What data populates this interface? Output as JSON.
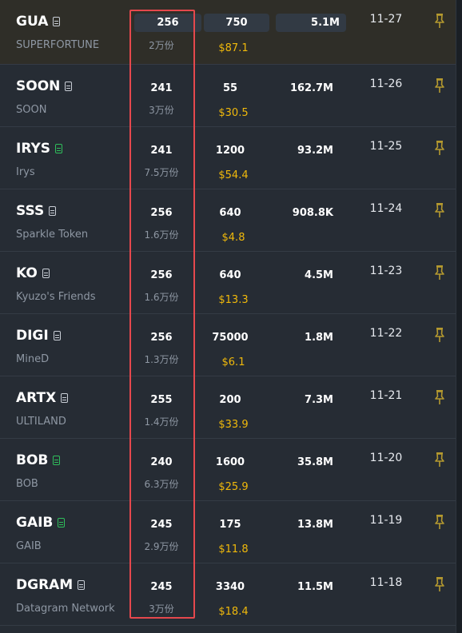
{
  "colors": {
    "accent_price": "#f0b90b",
    "highlight": "#e5484d",
    "doc_green": "#2fbf5b"
  },
  "rows": [
    {
      "symbol": "GUA",
      "name": "SUPERFORTUNE",
      "doc_color": "gray",
      "col1": "256",
      "col1_sub": "2万份",
      "col2": "750",
      "col2_sub": "$87.1",
      "col3": "5.1M",
      "date": "11-27"
    },
    {
      "symbol": "SOON",
      "name": "SOON",
      "doc_color": "gray",
      "col1": "241",
      "col1_sub": "3万份",
      "col2": "55",
      "col2_sub": "$30.5",
      "col3": "162.7M",
      "date": "11-26"
    },
    {
      "symbol": "IRYS",
      "name": "Irys",
      "doc_color": "green",
      "col1": "241",
      "col1_sub": "7.5万份",
      "col2": "1200",
      "col2_sub": "$54.4",
      "col3": "93.2M",
      "date": "11-25"
    },
    {
      "symbol": "SSS",
      "name": "Sparkle Token",
      "doc_color": "gray",
      "col1": "256",
      "col1_sub": "1.6万份",
      "col2": "640",
      "col2_sub": "$4.8",
      "col3": "908.8K",
      "date": "11-24"
    },
    {
      "symbol": "KO",
      "name": "Kyuzo's Friends",
      "doc_color": "gray",
      "col1": "256",
      "col1_sub": "1.6万份",
      "col2": "640",
      "col2_sub": "$13.3",
      "col3": "4.5M",
      "date": "11-23"
    },
    {
      "symbol": "DIGI",
      "name": "MineD",
      "doc_color": "gray",
      "col1": "256",
      "col1_sub": "1.3万份",
      "col2": "75000",
      "col2_sub": "$6.1",
      "col3": "1.8M",
      "date": "11-22"
    },
    {
      "symbol": "ARTX",
      "name": "ULTILAND",
      "doc_color": "gray",
      "col1": "255",
      "col1_sub": "1.4万份",
      "col2": "200",
      "col2_sub": "$33.9",
      "col3": "7.3M",
      "date": "11-21"
    },
    {
      "symbol": "BOB",
      "name": "BOB",
      "doc_color": "green",
      "col1": "240",
      "col1_sub": "6.3万份",
      "col2": "1600",
      "col2_sub": "$25.9",
      "col3": "35.8M",
      "date": "11-20"
    },
    {
      "symbol": "GAIB",
      "name": "GAIB",
      "doc_color": "green",
      "col1": "245",
      "col1_sub": "2.9万份",
      "col2": "175",
      "col2_sub": "$11.8",
      "col3": "13.8M",
      "date": "11-19"
    },
    {
      "symbol": "DGRAM",
      "name": "Datagram Network",
      "doc_color": "gray",
      "col1": "245",
      "col1_sub": "3万份",
      "col2": "3340",
      "col2_sub": "$18.4",
      "col3": "11.5M",
      "date": "11-18"
    }
  ]
}
